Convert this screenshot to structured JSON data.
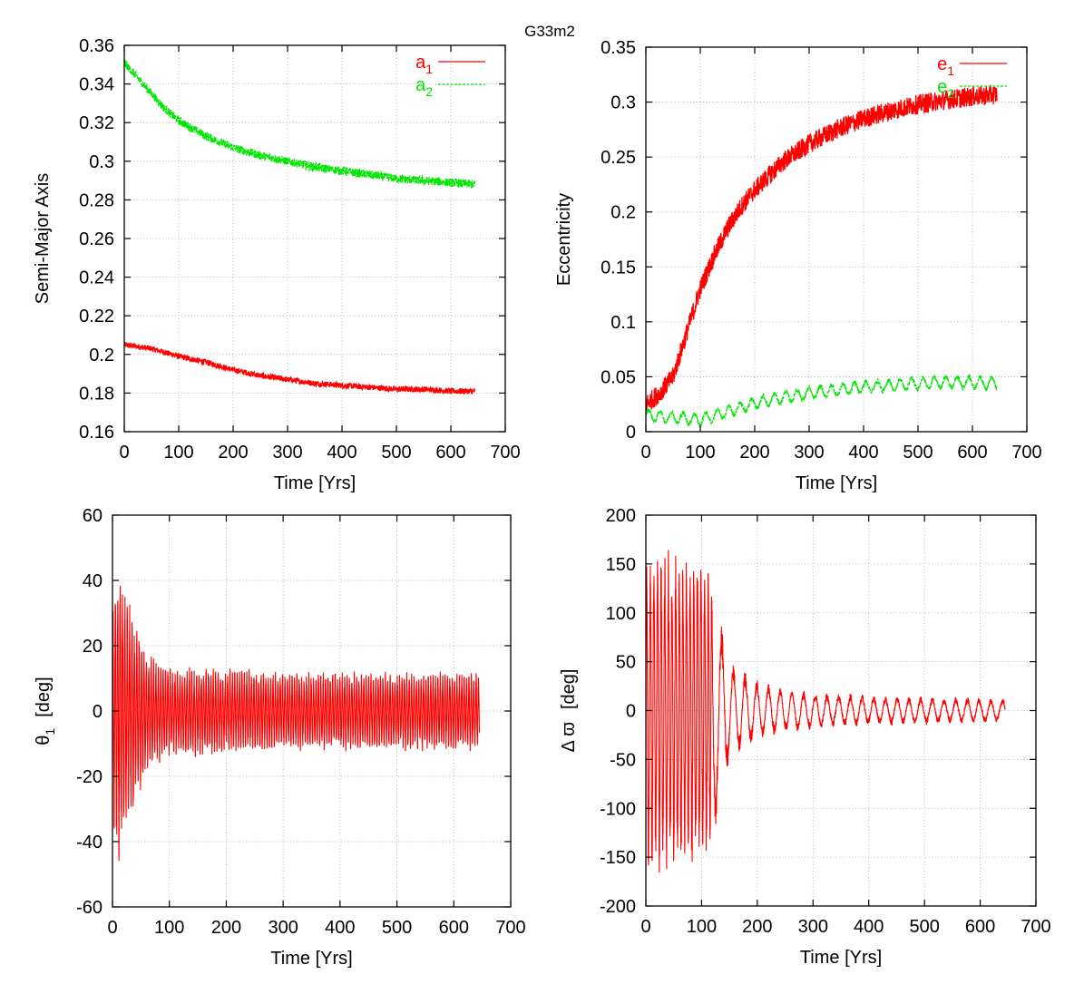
{
  "figure": {
    "title": "G33m2",
    "colors": {
      "red": "#ff0000",
      "green": "#00e600"
    }
  },
  "chart_data": [
    {
      "id": "semi-major-axis",
      "type": "line",
      "title": "",
      "xlabel": "Time [Yrs]",
      "ylabel": "Semi-Major Axis",
      "xlim": [
        0,
        700
      ],
      "ylim": [
        0.16,
        0.36
      ],
      "xticks": [
        0,
        100,
        200,
        300,
        400,
        500,
        600,
        700
      ],
      "yticks": [
        0.16,
        0.18,
        0.2,
        0.22,
        0.24,
        0.26,
        0.28,
        0.3,
        0.32,
        0.34,
        0.36
      ],
      "xtick_labels": [
        "0",
        "100",
        "200",
        "300",
        "400",
        "500",
        "600",
        "700"
      ],
      "ytick_labels": [
        "0.16",
        "0.18",
        "0.2",
        "0.22",
        "0.24",
        "0.26",
        "0.28",
        "0.3",
        "0.32",
        "0.34",
        "0.36"
      ],
      "grid": true,
      "legend": "top-right",
      "series": [
        {
          "name": "a",
          "subscript": "1",
          "color": "#ff0000",
          "dashed": false,
          "x": [
            0,
            25,
            50,
            100,
            150,
            200,
            250,
            300,
            350,
            400,
            450,
            500,
            550,
            600,
            645
          ],
          "y": [
            0.205,
            0.204,
            0.203,
            0.199,
            0.196,
            0.192,
            0.189,
            0.187,
            0.185,
            0.184,
            0.183,
            0.182,
            0.182,
            0.181,
            0.181
          ],
          "noise": 0.0015
        },
        {
          "name": "a",
          "subscript": "2",
          "color": "#00e600",
          "dashed": true,
          "x": [
            0,
            25,
            50,
            75,
            100,
            150,
            200,
            250,
            300,
            350,
            400,
            450,
            500,
            550,
            600,
            645
          ],
          "y": [
            0.351,
            0.343,
            0.335,
            0.327,
            0.321,
            0.313,
            0.307,
            0.303,
            0.3,
            0.297,
            0.295,
            0.293,
            0.291,
            0.29,
            0.289,
            0.288
          ],
          "noise": 0.0022
        }
      ]
    },
    {
      "id": "eccentricity",
      "type": "line",
      "title": "",
      "xlabel": "Time [Yrs]",
      "ylabel": "Eccentricity",
      "xlim": [
        0,
        700
      ],
      "ylim": [
        0,
        0.35
      ],
      "xticks": [
        0,
        100,
        200,
        300,
        400,
        500,
        600,
        700
      ],
      "yticks": [
        0,
        0.05,
        0.1,
        0.15,
        0.2,
        0.25,
        0.3,
        0.35
      ],
      "xtick_labels": [
        "0",
        "100",
        "200",
        "300",
        "400",
        "500",
        "600",
        "700"
      ],
      "ytick_labels": [
        "0",
        "0.05",
        "0.1",
        "0.15",
        "0.2",
        "0.25",
        "0.3",
        "0.35"
      ],
      "grid": true,
      "legend": "top-right",
      "series": [
        {
          "name": "e",
          "subscript": "1",
          "color": "#ff0000",
          "dashed": false,
          "x": [
            0,
            25,
            50,
            75,
            100,
            125,
            150,
            175,
            200,
            250,
            300,
            350,
            400,
            450,
            500,
            550,
            600,
            645
          ],
          "y": [
            0.025,
            0.035,
            0.05,
            0.09,
            0.13,
            0.16,
            0.185,
            0.205,
            0.22,
            0.245,
            0.262,
            0.275,
            0.285,
            0.292,
            0.298,
            0.302,
            0.305,
            0.307
          ],
          "noise": 0.009
        },
        {
          "name": "e",
          "subscript": "2",
          "color": "#00e600",
          "dashed": true,
          "x": [
            0,
            50,
            100,
            150,
            200,
            250,
            300,
            350,
            400,
            450,
            500,
            550,
            600,
            645
          ],
          "y": [
            0.015,
            0.013,
            0.011,
            0.018,
            0.026,
            0.031,
            0.035,
            0.038,
            0.041,
            0.042,
            0.044,
            0.045,
            0.045,
            0.044
          ],
          "osc": 0.005,
          "noise": 0.002
        }
      ]
    },
    {
      "id": "theta1",
      "type": "line",
      "title": "",
      "xlabel": "Time [Yrs]",
      "ylabel_parts": [
        "θ",
        "1",
        "[deg]"
      ],
      "xlim": [
        0,
        700
      ],
      "ylim": [
        -60,
        60
      ],
      "xticks": [
        0,
        100,
        200,
        300,
        400,
        500,
        600,
        700
      ],
      "yticks": [
        -60,
        -40,
        -20,
        0,
        20,
        40,
        60
      ],
      "xtick_labels": [
        "0",
        "100",
        "200",
        "300",
        "400",
        "500",
        "600",
        "700"
      ],
      "ytick_labels": [
        "-60",
        "-40",
        "-20",
        "0",
        "20",
        "40",
        "60"
      ],
      "grid": true,
      "series": [
        {
          "name": "",
          "color": "#ff0000",
          "dashed": false,
          "amp_t": [
            0,
            10,
            20,
            40,
            60,
            100,
            200,
            300,
            400,
            500,
            600,
            645
          ],
          "amp_v": [
            30,
            50,
            38,
            28,
            18,
            14,
            13,
            12,
            12,
            12,
            12,
            12
          ]
        }
      ]
    },
    {
      "id": "delta-varpi",
      "type": "line",
      "title": "",
      "xlabel": "Time [Yrs]",
      "ylabel_parts": [
        "Δ ϖ",
        "[deg]"
      ],
      "xlim": [
        0,
        700
      ],
      "ylim": [
        -200,
        200
      ],
      "xticks": [
        0,
        100,
        200,
        300,
        400,
        500,
        600,
        700
      ],
      "yticks": [
        -200,
        -150,
        -100,
        -50,
        0,
        50,
        100,
        150,
        200
      ],
      "xtick_labels": [
        "0",
        "100",
        "200",
        "300",
        "400",
        "500",
        "600",
        "700"
      ],
      "ytick_labels": [
        "-200",
        "-150",
        "-100",
        "-50",
        "0",
        "50",
        "100",
        "150",
        "200"
      ],
      "grid": true,
      "series": [
        {
          "name": "",
          "color": "#ff0000",
          "dashed": false,
          "amp_t": [
            0,
            50,
            100,
            115,
            150,
            200,
            250,
            300,
            400,
            500,
            600,
            645
          ],
          "amp_v": [
            170,
            160,
            165,
            150,
            50,
            30,
            22,
            18,
            15,
            13,
            12,
            12
          ]
        }
      ]
    }
  ]
}
